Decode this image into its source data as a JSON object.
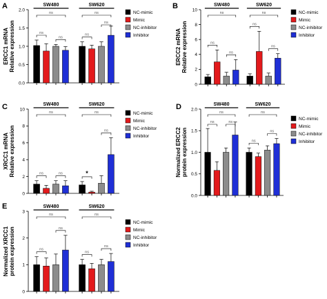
{
  "colors": {
    "NC-mimic": "#000000",
    "Mimic": "#e31a1c",
    "NC-inhibitor": "#8c8c8c",
    "Inhibitor": "#1f2fd6"
  },
  "chart_data": [
    {
      "panel": "A",
      "type": "bar",
      "ylabel": "ERCC1 mRNA\nRelative expression",
      "ylim": [
        0,
        2.0
      ],
      "yticks": [
        0,
        0.5,
        1.0,
        1.5,
        2.0
      ],
      "tick_labels": [
        "0.0",
        "0.5",
        "1.0",
        "1.5",
        "2.0"
      ],
      "groups": [
        "SW480",
        "SW620"
      ],
      "legend": [
        "NC-mimic",
        "Mimic",
        "NC-inhibitor",
        "Inhibitor"
      ],
      "series": [
        {
          "name": "NC-mimic",
          "values": [
            1.02,
            1.0
          ],
          "errors": [
            0.15,
            0.12
          ]
        },
        {
          "name": "Mimic",
          "values": [
            0.87,
            0.93
          ],
          "errors": [
            0.2,
            0.1
          ]
        },
        {
          "name": "NC-inhibitor",
          "values": [
            1.0,
            1.0
          ],
          "errors": [
            0.05,
            0.12
          ]
        },
        {
          "name": "Inhibitor",
          "values": [
            0.89,
            1.3
          ],
          "errors": [
            0.1,
            0.25
          ]
        }
      ],
      "annotations": [
        "ns",
        "ns",
        "ns",
        "ns",
        "ns",
        "ns"
      ]
    },
    {
      "panel": "B",
      "type": "bar",
      "ylabel": "ERCC2 mRNA\nRelative expression",
      "ylim": [
        0,
        10
      ],
      "yticks": [
        0,
        2,
        4,
        6,
        8,
        10
      ],
      "tick_labels": [
        "0",
        "2",
        "4",
        "6",
        "8",
        "10"
      ],
      "groups": [
        "SW480",
        "SW620"
      ],
      "legend": [
        "NC-mimic",
        "Mimic",
        "NC-inhibitor",
        "Inhibitor"
      ],
      "series": [
        {
          "name": "NC-mimic",
          "values": [
            1.0,
            1.1
          ],
          "errors": [
            0.3,
            0.3
          ]
        },
        {
          "name": "Mimic",
          "values": [
            3.0,
            4.4
          ],
          "errors": [
            1.6,
            2.7
          ]
        },
        {
          "name": "NC-inhibitor",
          "values": [
            1.1,
            1.1
          ],
          "errors": [
            0.5,
            0.4
          ]
        },
        {
          "name": "Inhibitor",
          "values": [
            1.9,
            3.5
          ],
          "errors": [
            1.4,
            0.6
          ]
        }
      ],
      "annotations": [
        "ns",
        "ns",
        "ns",
        "ns",
        "ns",
        "ns",
        "*"
      ]
    },
    {
      "panel": "C",
      "type": "bar",
      "ylabel": "XRCC1 mRNA\nRelative expression",
      "ylim": [
        0,
        10
      ],
      "yticks": [
        0,
        2,
        4,
        6,
        8,
        10
      ],
      "tick_labels": [
        "0",
        "2",
        "4",
        "6",
        "8",
        "10"
      ],
      "groups": [
        "SW480",
        "SW620"
      ],
      "legend": [
        "NC-mimic",
        "Mimic",
        "NC-inhibitor",
        "Inhibitor"
      ],
      "series": [
        {
          "name": "NC-mimic",
          "values": [
            1.1,
            1.0
          ],
          "errors": [
            0.4,
            0.4
          ]
        },
        {
          "name": "Mimic",
          "values": [
            0.6,
            0.15
          ],
          "errors": [
            0.35,
            0.1
          ]
        },
        {
          "name": "NC-inhibitor",
          "values": [
            1.1,
            1.2
          ],
          "errors": [
            0.4,
            0.9
          ]
        },
        {
          "name": "Inhibitor",
          "values": [
            0.9,
            4.6
          ],
          "errors": [
            0.6,
            2.0
          ]
        }
      ],
      "annotations": [
        "ns",
        "ns",
        "ns",
        "ns",
        "*",
        "ns"
      ]
    },
    {
      "panel": "D",
      "type": "bar",
      "ylabel": "Normalized ERCC2\nprotein expression",
      "ylim": [
        0,
        2.0
      ],
      "yticks": [
        0,
        0.5,
        1.0,
        1.5,
        2.0
      ],
      "tick_labels": [
        "0.0",
        "0.5",
        "1.0",
        "1.5",
        "2.0"
      ],
      "groups": [
        "SW480",
        "SW620"
      ],
      "legend": [
        "NC-mimic",
        "Mimic",
        "NC-inhibitor",
        "Inhibitor"
      ],
      "series": [
        {
          "name": "NC-mimic",
          "values": [
            1.0,
            1.0
          ],
          "errors": [
            0.55,
            0.1
          ]
        },
        {
          "name": "Mimic",
          "values": [
            0.58,
            0.9
          ],
          "errors": [
            0.2,
            0.08
          ]
        },
        {
          "name": "NC-inhibitor",
          "values": [
            1.0,
            1.05
          ],
          "errors": [
            0.1,
            0.1
          ]
        },
        {
          "name": "Inhibitor",
          "values": [
            1.4,
            1.2
          ],
          "errors": [
            0.3,
            0.12
          ]
        }
      ],
      "annotations": [
        "ns",
        "ns",
        "ns",
        "ns",
        "ns",
        "ns"
      ]
    },
    {
      "panel": "E",
      "type": "bar",
      "ylabel": "Normalized XRCC1\nprotein expression",
      "ylim": [
        0,
        3
      ],
      "yticks": [
        0,
        1,
        2,
        3
      ],
      "tick_labels": [
        "0",
        "1",
        "2",
        "3"
      ],
      "groups": [
        "SW480",
        "SW620"
      ],
      "legend": [
        "NC-mimic",
        "Mimic",
        "NC-inhibitor",
        "Inhibitor"
      ],
      "series": [
        {
          "name": "NC-mimic",
          "values": [
            1.0,
            1.0
          ],
          "errors": [
            0.3,
            0.2
          ]
        },
        {
          "name": "Mimic",
          "values": [
            0.95,
            0.85
          ],
          "errors": [
            0.3,
            0.2
          ]
        },
        {
          "name": "NC-inhibitor",
          "values": [
            1.0,
            1.0
          ],
          "errors": [
            0.4,
            0.2
          ]
        },
        {
          "name": "Inhibitor",
          "values": [
            1.55,
            1.12
          ],
          "errors": [
            0.55,
            0.3
          ]
        }
      ],
      "annotations": [
        "ns",
        "ns",
        "ns",
        "ns",
        "ns",
        "ns"
      ]
    }
  ]
}
